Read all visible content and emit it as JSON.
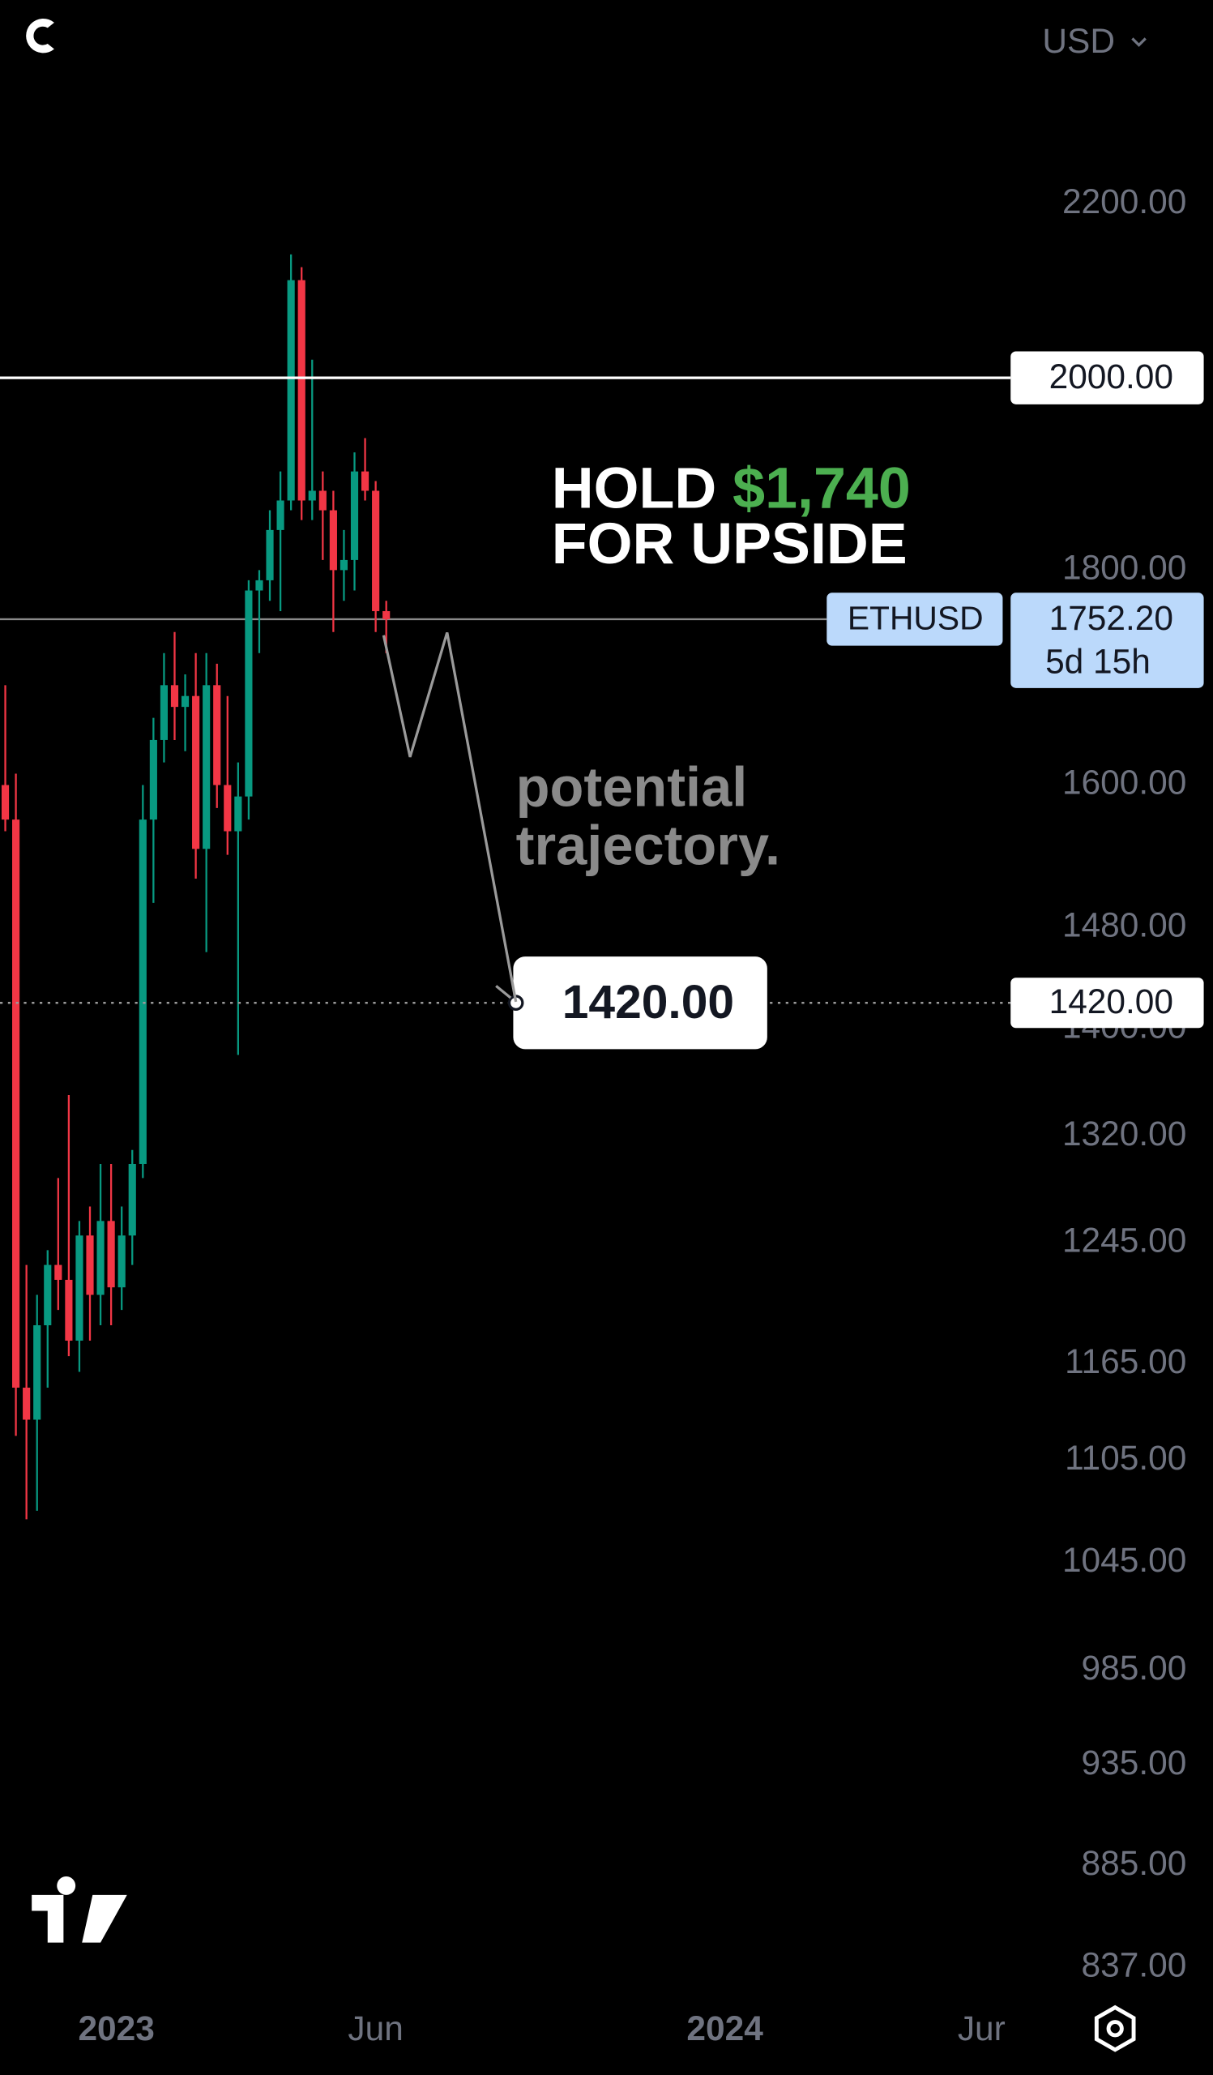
{
  "header": {
    "currency": "USD"
  },
  "chart_data": {
    "type": "candlestick",
    "symbol": "ETHUSD",
    "log_scale": true,
    "up_color": "#089981",
    "down_color": "#f23645",
    "x": [
      0,
      1,
      2,
      3,
      4,
      5,
      6,
      7,
      8,
      9,
      10,
      11,
      12,
      13,
      14,
      15,
      16,
      17,
      18,
      19,
      20,
      21,
      22,
      23,
      24,
      25,
      26,
      27,
      28,
      29,
      30,
      31,
      32,
      33,
      34,
      35,
      36
    ],
    "open": [
      1600,
      1570,
      1150,
      1130,
      1190,
      1230,
      1220,
      1180,
      1250,
      1210,
      1260,
      1215,
      1250,
      1300,
      1570,
      1640,
      1690,
      1670,
      1680,
      1545,
      1690,
      1600,
      1560,
      1590,
      1780,
      1790,
      1840,
      1870,
      2110,
      1870,
      1880,
      1860,
      1800,
      1810,
      1900,
      1880,
      1760
    ],
    "high": [
      1690,
      1610,
      1230,
      1210,
      1240,
      1290,
      1350,
      1260,
      1270,
      1300,
      1300,
      1270,
      1310,
      1600,
      1660,
      1720,
      1740,
      1700,
      1720,
      1720,
      1710,
      1680,
      1620,
      1790,
      1800,
      1860,
      1900,
      2140,
      2125,
      2020,
      1900,
      1880,
      1840,
      1920,
      1935,
      1890,
      1770
    ],
    "low": [
      1560,
      1120,
      1070,
      1075,
      1150,
      1200,
      1170,
      1160,
      1180,
      1190,
      1190,
      1200,
      1230,
      1290,
      1500,
      1620,
      1640,
      1630,
      1520,
      1460,
      1580,
      1540,
      1380,
      1570,
      1720,
      1770,
      1760,
      1860,
      1850,
      1850,
      1810,
      1740,
      1770,
      1780,
      1870,
      1740,
      1720
    ],
    "close": [
      1570,
      1150,
      1130,
      1190,
      1230,
      1220,
      1180,
      1250,
      1210,
      1260,
      1215,
      1250,
      1300,
      1570,
      1640,
      1690,
      1670,
      1680,
      1545,
      1690,
      1600,
      1560,
      1590,
      1780,
      1790,
      1840,
      1870,
      2110,
      1870,
      1880,
      1860,
      1800,
      1810,
      1900,
      1880,
      1760,
      1752.2
    ],
    "xlim": [
      -0.5,
      94.5
    ],
    "xticks": [
      {
        "value": 10.5,
        "label": "2023"
      },
      {
        "value": 35,
        "label": "Jun"
      },
      {
        "value": 68,
        "label": "2024"
      },
      {
        "value": 92.25,
        "label": "Jur"
      }
    ],
    "ylim": [
      823,
      2460
    ],
    "yticks": [
      {
        "value": 2200,
        "label": "2200.00"
      },
      {
        "value": 1800,
        "label": "1800.00"
      },
      {
        "value": 1600,
        "label": "1600.00"
      },
      {
        "value": 1480,
        "label": "1480.00"
      },
      {
        "value": 1400,
        "label": "1400.00"
      },
      {
        "value": 1320,
        "label": "1320.00"
      },
      {
        "value": 1245,
        "label": "1245.00"
      },
      {
        "value": 1165,
        "label": "1165.00"
      },
      {
        "value": 1105,
        "label": "1105.00"
      },
      {
        "value": 1045,
        "label": "1045.00"
      },
      {
        "value": 985,
        "label": "985.00"
      },
      {
        "value": 935,
        "label": "935.00"
      },
      {
        "value": 885,
        "label": "885.00"
      },
      {
        "value": 837,
        "label": "837.00"
      }
    ],
    "last_price": {
      "value": 1752.2,
      "label": "1752.20"
    },
    "countdown": "5d 15h",
    "horizontal_lines": [
      {
        "value": 2000,
        "label": "2000.00",
        "color": "#ffffff"
      },
      {
        "value": 1420,
        "label": "1420.00",
        "color": "#9a9a9a"
      }
    ],
    "annotations": {
      "hold": "HOLD",
      "hold_price": "$1,740",
      "hold_suffix": "FOR UPSIDE",
      "trajectory": [
        "potential",
        "trajectory."
      ]
    }
  }
}
